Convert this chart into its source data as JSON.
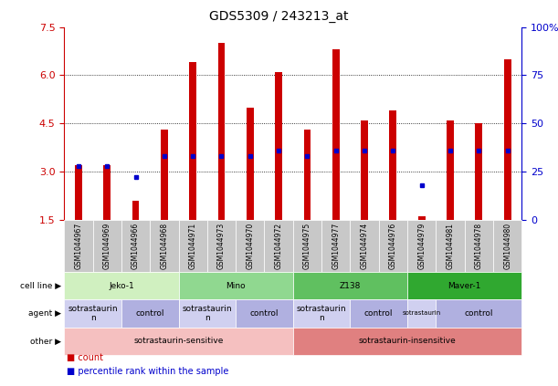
{
  "title": "GDS5309 / 243213_at",
  "samples": [
    "GSM1044967",
    "GSM1044969",
    "GSM1044966",
    "GSM1044968",
    "GSM1044971",
    "GSM1044973",
    "GSM1044970",
    "GSM1044972",
    "GSM1044975",
    "GSM1044977",
    "GSM1044974",
    "GSM1044976",
    "GSM1044979",
    "GSM1044981",
    "GSM1044978",
    "GSM1044980"
  ],
  "count": [
    3.2,
    3.2,
    2.1,
    4.3,
    6.4,
    7.0,
    5.0,
    6.1,
    4.3,
    6.8,
    4.6,
    4.9,
    1.6,
    4.6,
    4.5,
    6.5
  ],
  "percentile": [
    28,
    28,
    22,
    33,
    33,
    33,
    33,
    36,
    33,
    36,
    36,
    36,
    18,
    36,
    36,
    36
  ],
  "bar_bottom": 1.5,
  "ylim_left": [
    1.5,
    7.5
  ],
  "ylim_right": [
    0,
    100
  ],
  "yticks_left": [
    1.5,
    3.0,
    4.5,
    6.0,
    7.5
  ],
  "yticks_right": [
    0,
    25,
    50,
    75,
    100
  ],
  "gridlines": [
    3.0,
    4.5,
    6.0
  ],
  "cell_line_groups": [
    {
      "label": "Jeko-1",
      "start": 0,
      "end": 4,
      "color": "#d0f0c0"
    },
    {
      "label": "Mino",
      "start": 4,
      "end": 8,
      "color": "#90d890"
    },
    {
      "label": "Z138",
      "start": 8,
      "end": 12,
      "color": "#60c060"
    },
    {
      "label": "Maver-1",
      "start": 12,
      "end": 16,
      "color": "#30a830"
    }
  ],
  "agent_groups": [
    {
      "label": "sotrastaurin\nn",
      "start": 0,
      "end": 2,
      "color": "#d0d0f0"
    },
    {
      "label": "control",
      "start": 2,
      "end": 4,
      "color": "#b0b0e0"
    },
    {
      "label": "sotrastaurin\nn",
      "start": 4,
      "end": 6,
      "color": "#d0d0f0"
    },
    {
      "label": "control",
      "start": 6,
      "end": 8,
      "color": "#b0b0e0"
    },
    {
      "label": "sotrastaurin\nn",
      "start": 8,
      "end": 10,
      "color": "#d0d0f0"
    },
    {
      "label": "control",
      "start": 10,
      "end": 12,
      "color": "#b0b0e0"
    },
    {
      "label": "sotrastaurin",
      "start": 12,
      "end": 13,
      "color": "#d0d0f0"
    },
    {
      "label": "control",
      "start": 13,
      "end": 16,
      "color": "#b0b0e0"
    }
  ],
  "other_groups": [
    {
      "label": "sotrastaurin-sensitive",
      "start": 0,
      "end": 8,
      "color": "#f5c0c0"
    },
    {
      "label": "sotrastaurin-insensitive",
      "start": 8,
      "end": 16,
      "color": "#e08080"
    }
  ],
  "row_labels": [
    "cell line",
    "agent",
    "other"
  ],
  "bar_color": "#cc0000",
  "percentile_color": "#0000cc",
  "left_axis_color": "#cc0000",
  "right_axis_color": "#0000cc",
  "legend_items": [
    {
      "label": "count",
      "color": "#cc0000"
    },
    {
      "label": "percentile rank within the sample",
      "color": "#0000cc"
    }
  ],
  "sample_box_color": "#c8c8c8"
}
